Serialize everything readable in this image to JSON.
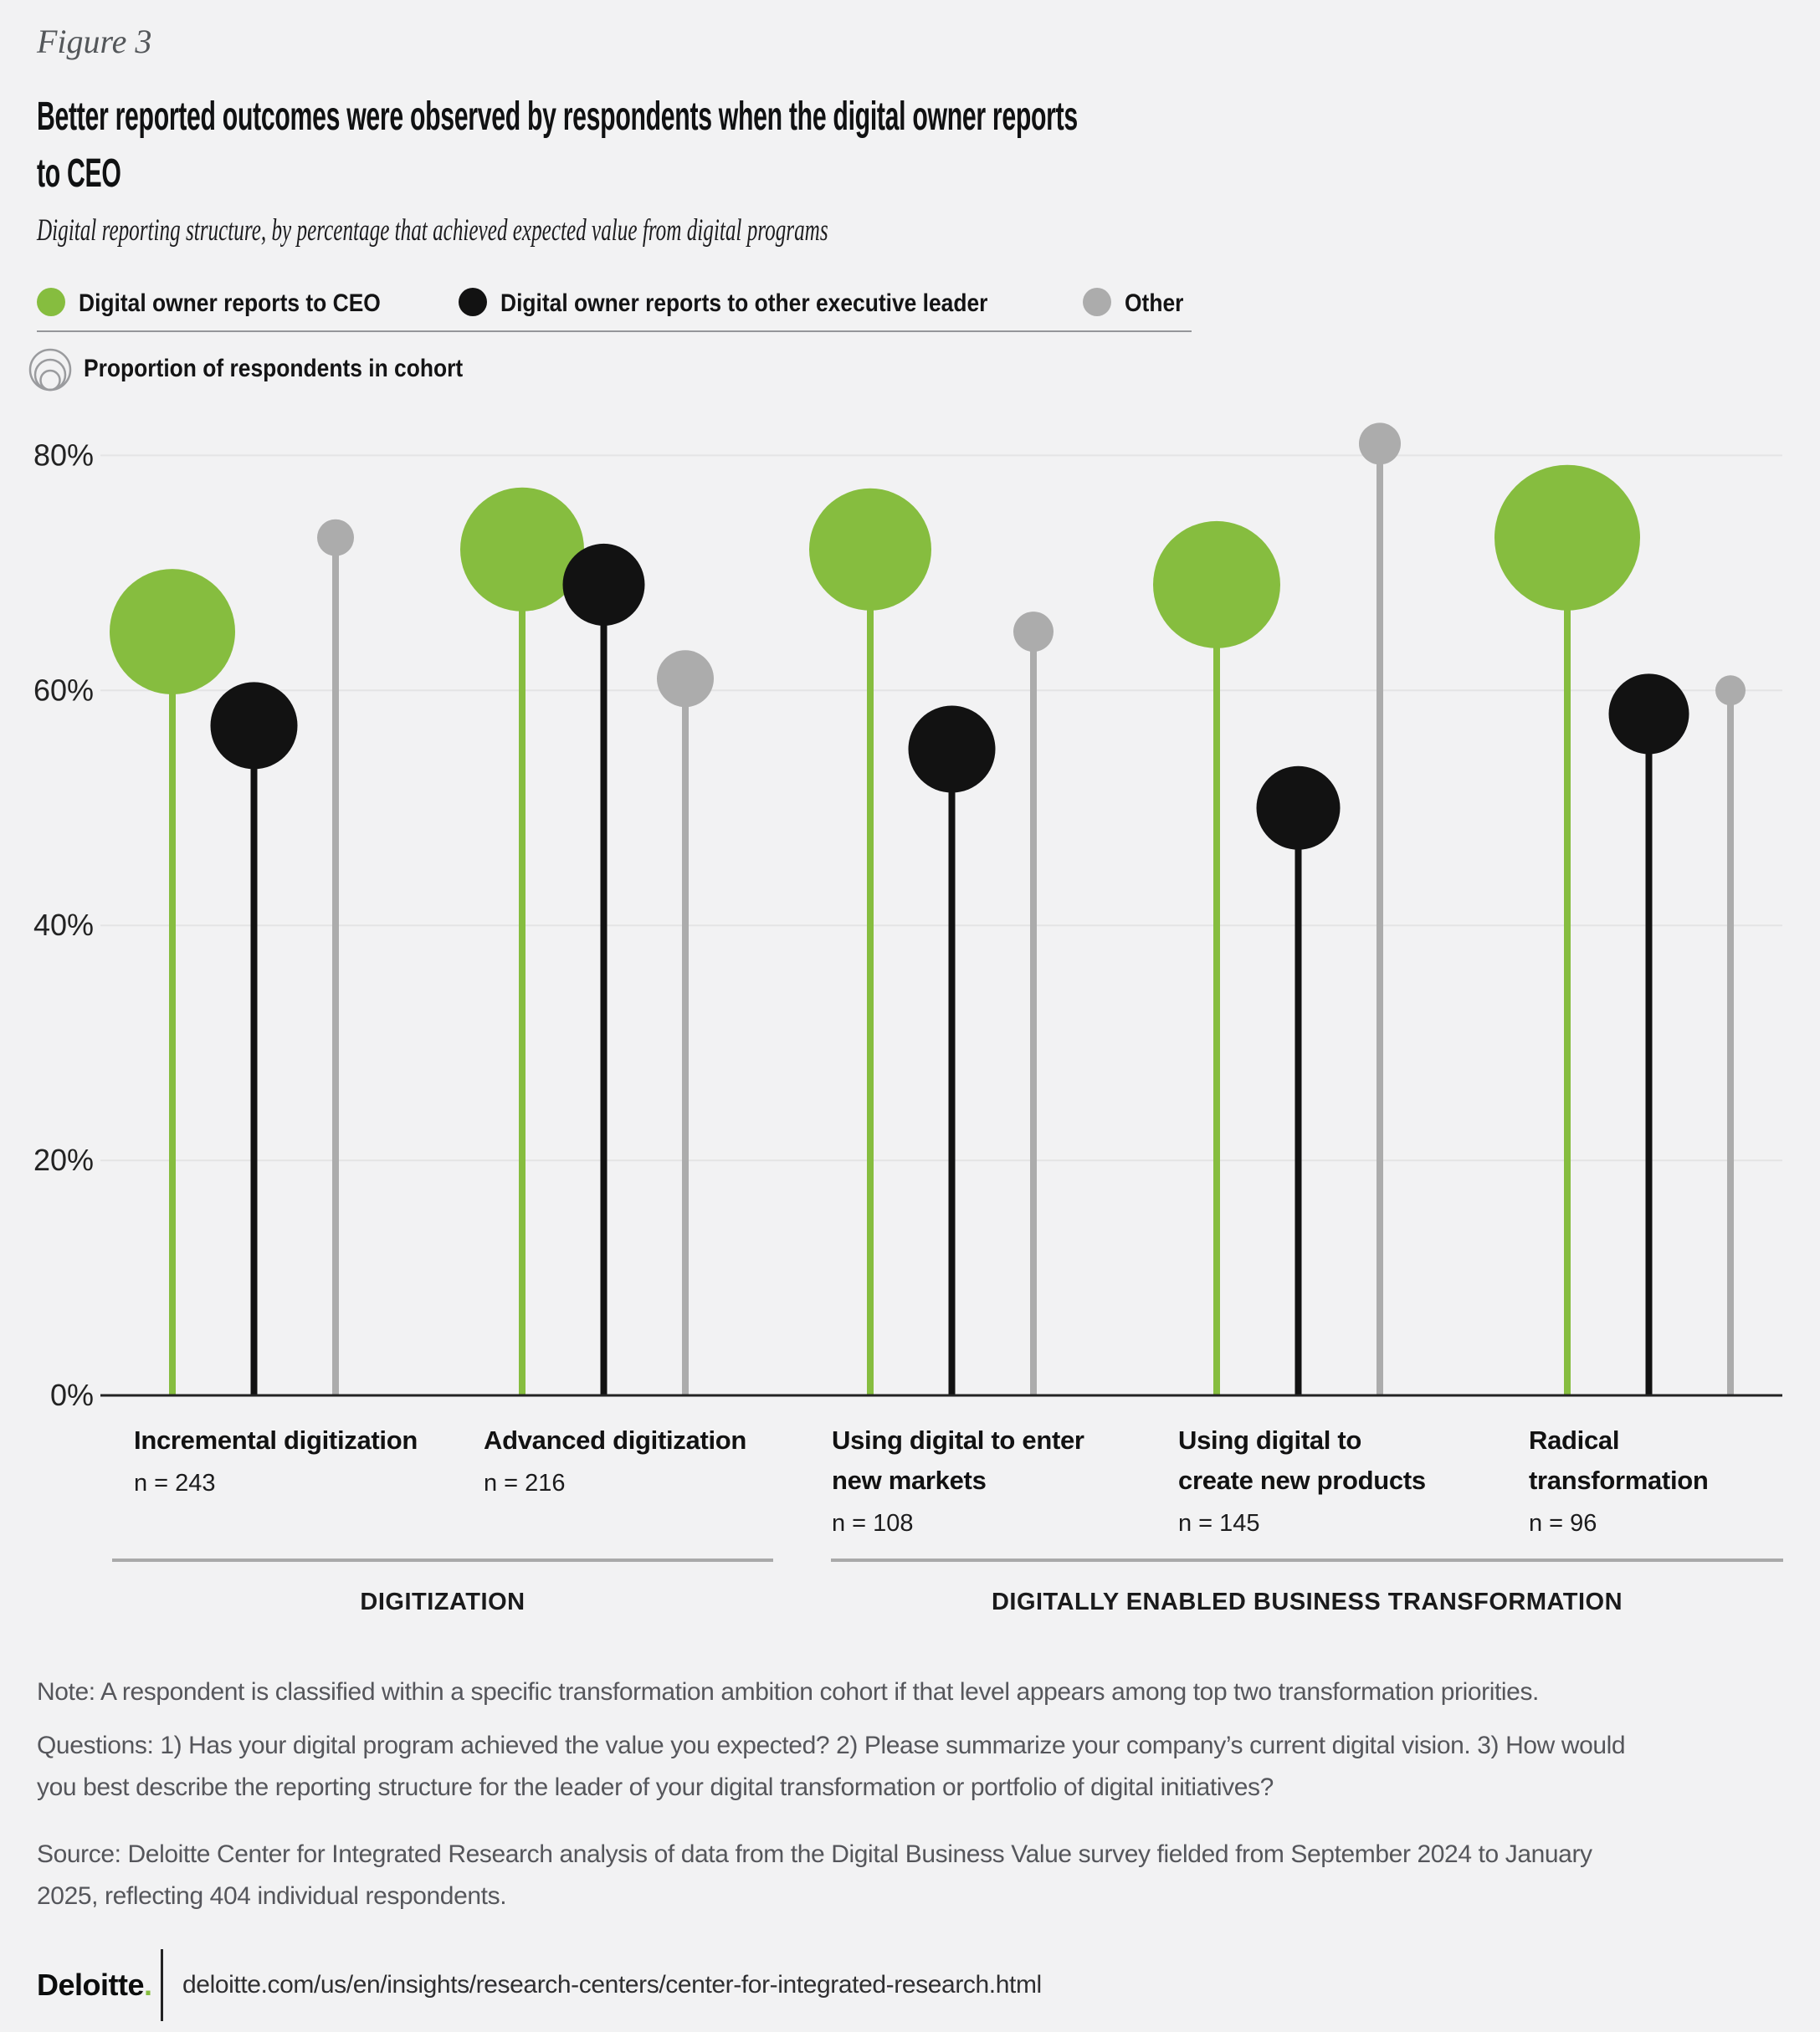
{
  "figure_label": "Figure 3",
  "title_lines": [
    "Better reported outcomes were observed by respondents when the digital owner reports",
    "to CEO"
  ],
  "subtitle": "Digital reporting structure, by percentage that achieved expected value from digital programs",
  "legend": {
    "items": [
      {
        "label": "Digital owner reports to CEO",
        "color": "#86bd3f"
      },
      {
        "label": "Digital owner reports to other executive leader",
        "color": "#121212"
      },
      {
        "label": "Other",
        "color": "#acacac"
      }
    ],
    "size_legend_label": "Proportion of respondents in cohort"
  },
  "chart_data": {
    "type": "lollipop",
    "unit": "percent",
    "ylim": [
      0,
      85
    ],
    "grid": "horizontal",
    "y_ticks": [
      {
        "value": 80,
        "label": "80%"
      },
      {
        "value": 60,
        "label": "60%"
      },
      {
        "value": 40,
        "label": "40%"
      },
      {
        "value": 20,
        "label": "20%"
      },
      {
        "value": 0,
        "label": "0%"
      }
    ],
    "series": [
      {
        "id": "ceo",
        "name": "Digital owner reports to CEO",
        "color": "#86bd3f"
      },
      {
        "id": "exec",
        "name": "Digital owner reports to other executive leader",
        "color": "#121212"
      },
      {
        "id": "other",
        "name": "Other",
        "color": "#acacac"
      }
    ],
    "bubble_meaning": "Proportion of respondents in cohort",
    "groups": [
      {
        "label_lines": [
          "Incremental digitization"
        ],
        "n": 243,
        "n_label": "n = 243",
        "values": {
          "ceo": 65,
          "exec": 57,
          "other": 73
        },
        "bubble_radius": {
          "ceo": 75,
          "exec": 52,
          "other": 22
        }
      },
      {
        "label_lines": [
          "Advanced digitization"
        ],
        "n": 216,
        "n_label": "n = 216",
        "values": {
          "ceo": 72,
          "exec": 69,
          "other": 61
        },
        "bubble_radius": {
          "ceo": 74,
          "exec": 49,
          "other": 34
        }
      },
      {
        "label_lines": [
          "Using digital to enter",
          "new markets"
        ],
        "n": 108,
        "n_label": "n = 108",
        "values": {
          "ceo": 72,
          "exec": 55,
          "other": 65
        },
        "bubble_radius": {
          "ceo": 73,
          "exec": 52,
          "other": 24
        }
      },
      {
        "label_lines": [
          "Using digital to",
          "create new products"
        ],
        "n": 145,
        "n_label": "n = 145",
        "values": {
          "ceo": 69,
          "exec": 50,
          "other": 81
        },
        "bubble_radius": {
          "ceo": 76,
          "exec": 50,
          "other": 25
        }
      },
      {
        "label_lines": [
          "Radical",
          "transformation"
        ],
        "n": 96,
        "n_label": "n = 96",
        "values": {
          "ceo": 73,
          "exec": 58,
          "other": 60
        },
        "bubble_radius": {
          "ceo": 87,
          "exec": 48,
          "other": 18
        }
      }
    ],
    "sections": [
      {
        "label": "DIGITIZATION",
        "from_group": 0,
        "to_group": 1
      },
      {
        "label": "DIGITALLY ENABLED BUSINESS TRANSFORMATION",
        "from_group": 2,
        "to_group": 4
      }
    ]
  },
  "footnotes": {
    "note_lines": [
      "Note: A respondent is classified within a specific transformation ambition cohort if that level appears among top two transformation priorities."
    ],
    "questions_lines": [
      "Questions: 1) Has your digital program achieved the value you expected? 2) Please summarize your company’s current digital vision. 3) How would",
      "you best describe the reporting structure for the leader of your digital transformation or portfolio of digital initiatives?"
    ],
    "source_lines": [
      "Source: Deloitte Center for Integrated Research analysis of data from the Digital Business Value survey fielded from September 2024 to January",
      "2025, reflecting 404 individual respondents."
    ]
  },
  "footer": {
    "brand": "Deloitte",
    "brand_suffix": ".",
    "url": "deloitte.com/us/en/insights/research-centers/center-for-integrated-research.html"
  }
}
